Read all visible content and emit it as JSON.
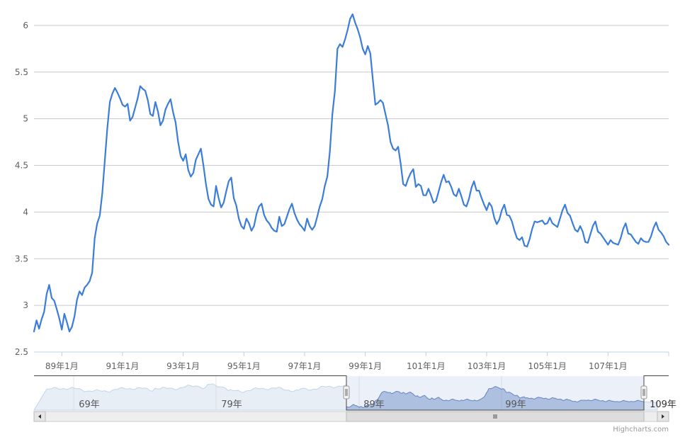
{
  "chart_data": {
    "type": "line",
    "title": "",
    "xlabel": "",
    "ylabel": "",
    "ylim": [
      2.5,
      6.25
    ],
    "yticks": [
      "2.5",
      "3",
      "3.5",
      "4",
      "4.5",
      "5",
      "5.5",
      "6"
    ],
    "xticks": [
      "89年1月",
      "91年1月",
      "93年1月",
      "95年1月",
      "97年1月",
      "99年1月",
      "101年1月",
      "103年1月",
      "105年1月",
      "107年1月"
    ],
    "grid": true,
    "legend": "none",
    "line_color": "#3b7dd8",
    "series": [
      {
        "name": "",
        "start": "88年2月",
        "interval": "month",
        "values": [
          2.72,
          2.84,
          2.75,
          2.85,
          2.93,
          3.12,
          3.22,
          3.08,
          3.05,
          2.96,
          2.86,
          2.74,
          2.91,
          2.82,
          2.72,
          2.77,
          2.88,
          3.06,
          3.15,
          3.11,
          3.19,
          3.22,
          3.26,
          3.35,
          3.72,
          3.88,
          3.96,
          4.2,
          4.55,
          4.9,
          5.18,
          5.27,
          5.33,
          5.28,
          5.22,
          5.15,
          5.13,
          5.16,
          4.98,
          5.02,
          5.12,
          5.22,
          5.35,
          5.32,
          5.3,
          5.2,
          5.05,
          5.03,
          5.18,
          5.08,
          4.93,
          4.98,
          5.1,
          5.16,
          5.21,
          5.07,
          4.96,
          4.75,
          4.6,
          4.55,
          4.62,
          4.45,
          4.38,
          4.42,
          4.56,
          4.62,
          4.68,
          4.5,
          4.3,
          4.14,
          4.08,
          4.06,
          4.28,
          4.15,
          4.05,
          4.1,
          4.22,
          4.33,
          4.37,
          4.15,
          4.07,
          3.93,
          3.85,
          3.82,
          3.93,
          3.88,
          3.8,
          3.85,
          3.98,
          4.06,
          4.09,
          3.97,
          3.91,
          3.88,
          3.83,
          3.8,
          3.79,
          3.95,
          3.85,
          3.87,
          3.95,
          4.03,
          4.09,
          3.99,
          3.92,
          3.87,
          3.84,
          3.8,
          3.93,
          3.85,
          3.81,
          3.85,
          3.95,
          4.06,
          4.14,
          4.28,
          4.38,
          4.65,
          5.05,
          5.3,
          5.75,
          5.8,
          5.77,
          5.85,
          5.95,
          6.07,
          6.12,
          6.03,
          5.96,
          5.87,
          5.75,
          5.69,
          5.78,
          5.7,
          5.42,
          5.15,
          5.17,
          5.2,
          5.17,
          5.05,
          4.93,
          4.75,
          4.68,
          4.66,
          4.7,
          4.52,
          4.3,
          4.28,
          4.36,
          4.42,
          4.46,
          4.27,
          4.3,
          4.28,
          4.18,
          4.18,
          4.25,
          4.18,
          4.1,
          4.12,
          4.22,
          4.32,
          4.4,
          4.32,
          4.33,
          4.27,
          4.19,
          4.17,
          4.25,
          4.17,
          4.08,
          4.06,
          4.14,
          4.26,
          4.33,
          4.23,
          4.23,
          4.15,
          4.08,
          4.02,
          4.1,
          4.06,
          3.94,
          3.87,
          3.92,
          4.02,
          4.08,
          3.97,
          3.96,
          3.9,
          3.8,
          3.72,
          3.7,
          3.73,
          3.64,
          3.63,
          3.71,
          3.82,
          3.9,
          3.89,
          3.9,
          3.91,
          3.87,
          3.88,
          3.94,
          3.88,
          3.86,
          3.84,
          3.93,
          4.02,
          4.08,
          3.99,
          3.96,
          3.88,
          3.81,
          3.79,
          3.85,
          3.79,
          3.68,
          3.67,
          3.76,
          3.85,
          3.9,
          3.79,
          3.77,
          3.73,
          3.69,
          3.65,
          3.7,
          3.67,
          3.66,
          3.65,
          3.72,
          3.82,
          3.88,
          3.77,
          3.76,
          3.72,
          3.68,
          3.66,
          3.72,
          3.69,
          3.68,
          3.68,
          3.74,
          3.83,
          3.89,
          3.81,
          3.78,
          3.74,
          3.68,
          3.65
        ]
      }
    ]
  },
  "navigator": {
    "labels": [
      "69年",
      "79年",
      "89年",
      "99年",
      "109年"
    ],
    "scrollbar_grip": "III",
    "left_arrow": "◀",
    "right_arrow": "▶"
  },
  "credit": "Highcharts.com"
}
